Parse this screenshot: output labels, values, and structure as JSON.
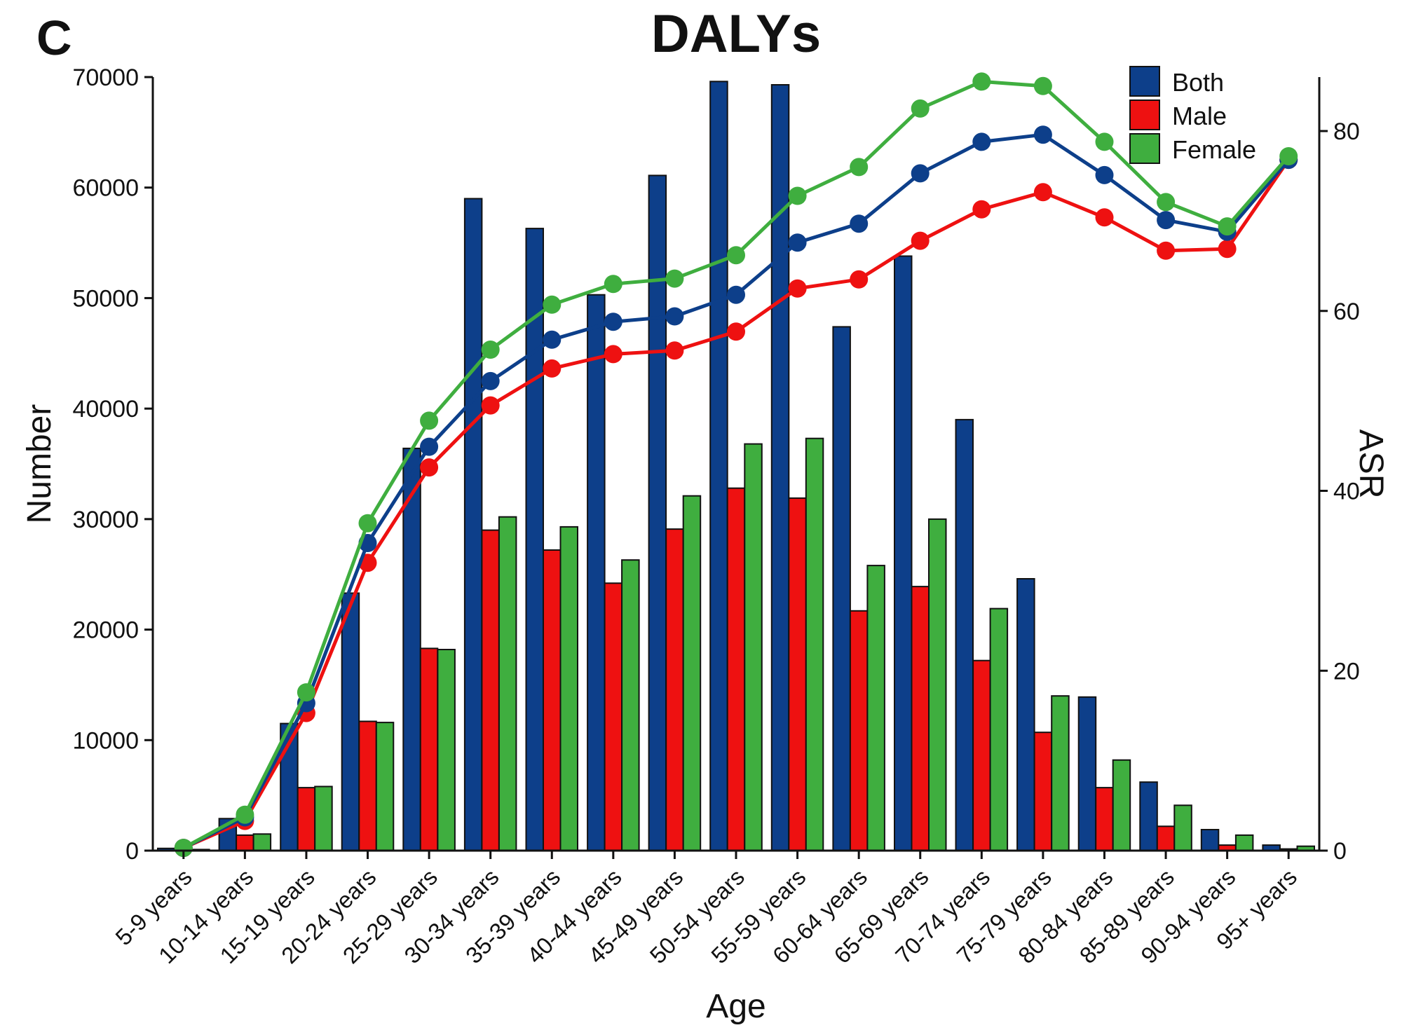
{
  "panel_label": "C",
  "chart_data": {
    "type": "bar",
    "title": "DALYs",
    "xlabel": "Age",
    "ylabel": "Number",
    "y2label": "ASR",
    "ylim": [
      0,
      70000
    ],
    "yticks": [
      0,
      10000,
      20000,
      30000,
      40000,
      50000,
      60000,
      70000
    ],
    "y2lim": [
      0,
      86
    ],
    "y2ticks": [
      0,
      20,
      40,
      60,
      80
    ],
    "grid": false,
    "legend_position": "top-right",
    "categories": [
      "5-9 years",
      "10-14 years",
      "15-19 years",
      "20-24 years",
      "25-29 years",
      "30-34 years",
      "35-39 years",
      "40-44 years",
      "45-49 years",
      "50-54 years",
      "55-59 years",
      "60-64 years",
      "65-69 years",
      "70-74 years",
      "75-79 years",
      "80-84 years",
      "85-89 years",
      "90-94 years",
      "95+ years"
    ],
    "series": [
      {
        "name": "Both",
        "color": "#0d3f8a",
        "kind": "bar",
        "values": [
          200,
          2900,
          11500,
          23300,
          36400,
          59000,
          56300,
          50300,
          61100,
          69600,
          69300,
          47400,
          53800,
          39000,
          24600,
          13900,
          6200,
          1900,
          500
        ]
      },
      {
        "name": "Male",
        "color": "#ee1111",
        "kind": "bar",
        "values": [
          100,
          1400,
          5700,
          11700,
          18300,
          29000,
          27200,
          24200,
          29100,
          32800,
          31900,
          21700,
          23900,
          17200,
          10700,
          5700,
          2200,
          500,
          150
        ]
      },
      {
        "name": "Female",
        "color": "#3fae3f",
        "kind": "bar",
        "values": [
          100,
          1500,
          5800,
          11600,
          18200,
          30200,
          29300,
          26300,
          32100,
          36800,
          37300,
          25800,
          30000,
          21900,
          14000,
          8200,
          4100,
          1400,
          400
        ]
      }
    ],
    "asr_series": [
      {
        "name": "Both",
        "color": "#0d3f8a",
        "kind": "line",
        "values": [
          0.3,
          3.7,
          16.4,
          34.2,
          44.9,
          52.2,
          56.8,
          58.8,
          59.4,
          61.8,
          67.6,
          69.7,
          75.3,
          78.8,
          79.6,
          75.1,
          70.1,
          68.8,
          76.8
        ]
      },
      {
        "name": "Male",
        "color": "#ee1111",
        "kind": "line",
        "values": [
          0.3,
          3.3,
          15.3,
          32.0,
          42.6,
          49.5,
          53.6,
          55.2,
          55.6,
          57.7,
          62.5,
          63.5,
          67.8,
          71.3,
          73.2,
          70.4,
          66.7,
          66.9,
          76.8
        ]
      },
      {
        "name": "Female",
        "color": "#3fae3f",
        "kind": "line",
        "values": [
          0.3,
          4.0,
          17.6,
          36.4,
          47.8,
          55.7,
          60.7,
          63.0,
          63.6,
          66.2,
          72.8,
          76.0,
          82.5,
          85.5,
          85.0,
          78.8,
          72.1,
          69.4,
          77.2
        ]
      }
    ]
  }
}
